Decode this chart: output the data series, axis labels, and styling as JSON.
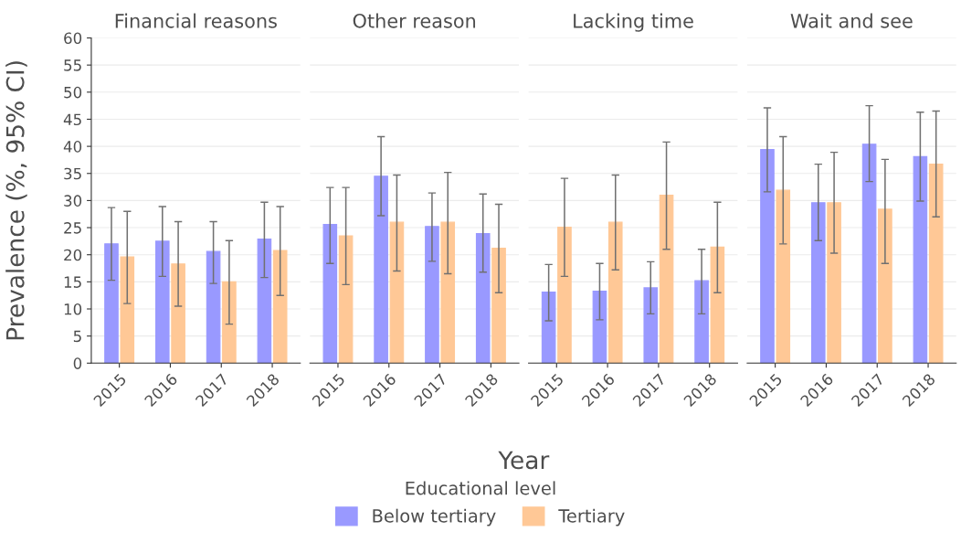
{
  "chart_data": [
    {
      "type": "bar",
      "title": "Financial reasons",
      "ylabel": "Prevalence (%, 95% CI)",
      "legend_title": "Educational level",
      "legend": "bottom",
      "categories": [
        "2015",
        "2016",
        "2017",
        "2018"
      ],
      "ylim": [
        0,
        60
      ],
      "yticks": [
        0,
        5,
        10,
        15,
        20,
        25,
        30,
        35,
        40,
        45,
        50,
        55,
        60
      ],
      "grid": "y",
      "series": [
        {
          "name": "Below tertiary",
          "color": "#9999ff",
          "values": [
            22.0,
            22.5,
            20.6,
            22.9
          ],
          "errors": [
            [
              15.3,
              28.7
            ],
            [
              16.0,
              28.9
            ],
            [
              14.7,
              26.1
            ],
            [
              15.8,
              29.7
            ]
          ]
        },
        {
          "name": "Tertiary",
          "color": "#ffc896",
          "values": [
            19.6,
            18.3,
            15.0,
            20.8
          ],
          "errors": [
            [
              11.0,
              28.0
            ],
            [
              10.5,
              26.1
            ],
            [
              7.2,
              22.6
            ],
            [
              12.5,
              28.9
            ]
          ]
        }
      ]
    },
    {
      "type": "bar",
      "title": "Other reason",
      "xlabel": "Year",
      "categories": [
        "2015",
        "2016",
        "2017",
        "2018"
      ],
      "ylim": [
        0,
        60
      ],
      "yticks": [
        0,
        5,
        10,
        15,
        20,
        25,
        30,
        35,
        40,
        45,
        50,
        55,
        60
      ],
      "grid": "y",
      "tick_labels": "x",
      "series": [
        {
          "color": "#9999ff",
          "values": [
            25.6,
            34.5,
            25.2,
            23.9
          ],
          "errors": [
            [
              18.4,
              32.4
            ],
            [
              27.2,
              41.8
            ],
            [
              18.8,
              31.4
            ],
            [
              16.8,
              31.2
            ]
          ]
        },
        {
          "color": "#ffc896",
          "values": [
            23.5,
            26.0,
            26.0,
            21.2
          ],
          "errors": [
            [
              14.5,
              32.4
            ],
            [
              17.0,
              34.7
            ],
            [
              16.5,
              35.2
            ],
            [
              13.0,
              29.3
            ]
          ]
        }
      ]
    },
    {
      "type": "bar",
      "title": "Lacking time",
      "categories": [
        "2015",
        "2016",
        "2017",
        "2018"
      ],
      "ylim": [
        0,
        60
      ],
      "yticks": [
        0,
        5,
        10,
        15,
        20,
        25,
        30,
        35,
        40,
        45,
        50,
        55,
        60
      ],
      "grid": "y",
      "tick_labels": "x",
      "series": [
        {
          "color": "#9999ff",
          "values": [
            13.1,
            13.3,
            13.9,
            15.2
          ],
          "errors": [
            [
              7.8,
              18.2
            ],
            [
              8.0,
              18.4
            ],
            [
              9.1,
              18.7
            ],
            [
              9.1,
              21.0
            ]
          ]
        },
        {
          "color": "#ffc896",
          "values": [
            25.1,
            26.0,
            31.0,
            21.4
          ],
          "errors": [
            [
              16.0,
              34.1
            ],
            [
              17.2,
              34.7
            ],
            [
              21.0,
              40.8
            ],
            [
              13.0,
              29.7
            ]
          ]
        }
      ]
    },
    {
      "type": "bar",
      "title": "Wait and see",
      "categories": [
        "2015",
        "2016",
        "2017",
        "2018"
      ],
      "ylim": [
        0,
        60
      ],
      "yticks": [
        0,
        5,
        10,
        15,
        20,
        25,
        30,
        35,
        40,
        45,
        50,
        55,
        60
      ],
      "grid": "y",
      "tick_labels": "x",
      "series": [
        {
          "color": "#9999ff",
          "values": [
            39.4,
            29.6,
            40.4,
            38.1
          ],
          "errors": [
            [
              31.6,
              47.1
            ],
            [
              22.6,
              36.7
            ],
            [
              33.5,
              47.5
            ],
            [
              29.9,
              46.3
            ]
          ]
        },
        {
          "color": "#ffc896",
          "values": [
            31.9,
            29.6,
            28.4,
            36.7
          ],
          "errors": [
            [
              22.0,
              41.8
            ],
            [
              20.3,
              38.9
            ],
            [
              18.4,
              37.6
            ],
            [
              27.0,
              46.5
            ]
          ]
        }
      ]
    }
  ]
}
